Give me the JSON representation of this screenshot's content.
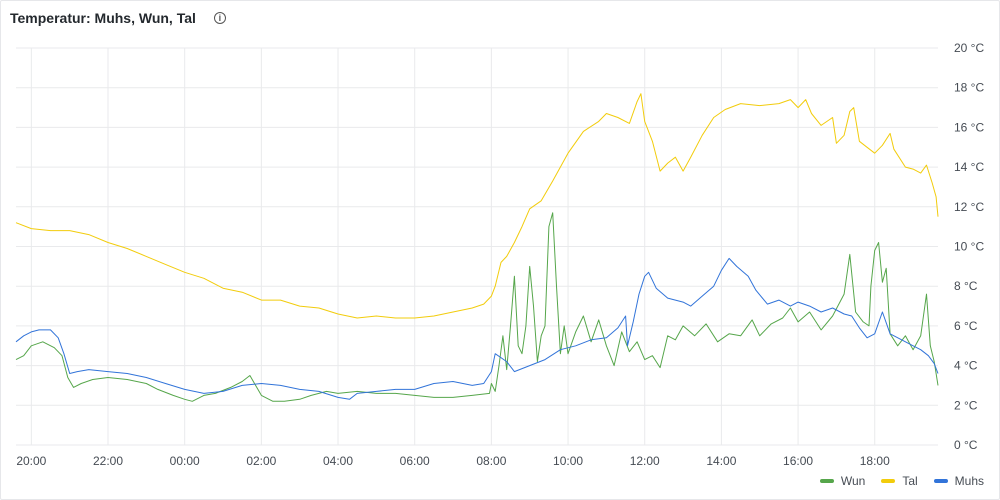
{
  "panel": {
    "title": "Temperatur: Muhs, Wun, Tal",
    "info_icon": "info-circle-icon"
  },
  "chart_data": {
    "type": "line",
    "y_ticks": [
      "0 °C",
      "2 °C",
      "4 °C",
      "6 °C",
      "8 °C",
      "10 °C",
      "12 °C",
      "14 °C",
      "16 °C",
      "18 °C",
      "20 °C"
    ],
    "x_ticks": [
      "20:00",
      "22:00",
      "00:00",
      "02:00",
      "04:00",
      "06:00",
      "08:00",
      "10:00",
      "12:00",
      "14:00",
      "16:00",
      "18:00"
    ],
    "ylim": [
      0,
      20
    ],
    "xlim": [
      19.6,
      43.65
    ],
    "grid": true,
    "legend_position": "bottom-right",
    "series": [
      {
        "name": "Wun",
        "color": "#56a64b",
        "points": [
          [
            19.6,
            4.3
          ],
          [
            19.8,
            4.5
          ],
          [
            20.0,
            5.0
          ],
          [
            20.3,
            5.2
          ],
          [
            20.6,
            4.9
          ],
          [
            20.8,
            4.5
          ],
          [
            20.95,
            3.4
          ],
          [
            21.1,
            2.9
          ],
          [
            21.3,
            3.1
          ],
          [
            21.6,
            3.3
          ],
          [
            22.0,
            3.4
          ],
          [
            22.5,
            3.3
          ],
          [
            23.0,
            3.1
          ],
          [
            23.3,
            2.8
          ],
          [
            23.7,
            2.5
          ],
          [
            24.0,
            2.3
          ],
          [
            24.2,
            2.2
          ],
          [
            24.5,
            2.5
          ],
          [
            24.8,
            2.6
          ],
          [
            25.2,
            2.9
          ],
          [
            25.5,
            3.2
          ],
          [
            25.7,
            3.5
          ],
          [
            25.85,
            3.0
          ],
          [
            26.0,
            2.5
          ],
          [
            26.3,
            2.2
          ],
          [
            26.6,
            2.2
          ],
          [
            27.0,
            2.3
          ],
          [
            27.3,
            2.5
          ],
          [
            27.7,
            2.7
          ],
          [
            28.0,
            2.6
          ],
          [
            28.5,
            2.7
          ],
          [
            29.0,
            2.6
          ],
          [
            29.5,
            2.6
          ],
          [
            30.0,
            2.5
          ],
          [
            30.5,
            2.4
          ],
          [
            31.0,
            2.4
          ],
          [
            31.5,
            2.5
          ],
          [
            31.95,
            2.6
          ],
          [
            32.0,
            3.1
          ],
          [
            32.1,
            2.7
          ],
          [
            32.2,
            4.0
          ],
          [
            32.3,
            5.5
          ],
          [
            32.4,
            3.8
          ],
          [
            32.5,
            6.0
          ],
          [
            32.6,
            8.5
          ],
          [
            32.7,
            5.0
          ],
          [
            32.8,
            4.6
          ],
          [
            32.9,
            6.0
          ],
          [
            33.0,
            9.0
          ],
          [
            33.1,
            7.0
          ],
          [
            33.2,
            4.2
          ],
          [
            33.3,
            5.5
          ],
          [
            33.4,
            6.0
          ],
          [
            33.5,
            11.0
          ],
          [
            33.6,
            11.7
          ],
          [
            33.7,
            8.0
          ],
          [
            33.8,
            4.6
          ],
          [
            33.9,
            6.0
          ],
          [
            34.0,
            4.6
          ],
          [
            34.2,
            5.7
          ],
          [
            34.4,
            6.5
          ],
          [
            34.6,
            5.2
          ],
          [
            34.8,
            6.3
          ],
          [
            35.0,
            5.0
          ],
          [
            35.2,
            4.0
          ],
          [
            35.4,
            5.7
          ],
          [
            35.6,
            4.7
          ],
          [
            35.8,
            5.2
          ],
          [
            36.0,
            4.3
          ],
          [
            36.2,
            4.5
          ],
          [
            36.4,
            3.9
          ],
          [
            36.6,
            5.5
          ],
          [
            36.8,
            5.3
          ],
          [
            37.0,
            6.0
          ],
          [
            37.3,
            5.5
          ],
          [
            37.6,
            6.1
          ],
          [
            37.9,
            5.2
          ],
          [
            38.2,
            5.6
          ],
          [
            38.5,
            5.5
          ],
          [
            38.8,
            6.3
          ],
          [
            39.0,
            5.5
          ],
          [
            39.3,
            6.1
          ],
          [
            39.6,
            6.4
          ],
          [
            39.8,
            6.9
          ],
          [
            40.0,
            6.2
          ],
          [
            40.3,
            6.7
          ],
          [
            40.6,
            5.8
          ],
          [
            40.9,
            6.5
          ],
          [
            41.2,
            7.6
          ],
          [
            41.35,
            9.6
          ],
          [
            41.5,
            6.7
          ],
          [
            41.7,
            6.2
          ],
          [
            41.85,
            6.0
          ],
          [
            41.9,
            8.0
          ],
          [
            42.0,
            9.8
          ],
          [
            42.1,
            10.2
          ],
          [
            42.2,
            8.2
          ],
          [
            42.3,
            8.9
          ],
          [
            42.4,
            5.6
          ],
          [
            42.6,
            5.0
          ],
          [
            42.8,
            5.5
          ],
          [
            43.0,
            4.8
          ],
          [
            43.2,
            5.5
          ],
          [
            43.35,
            7.6
          ],
          [
            43.45,
            5.0
          ],
          [
            43.55,
            4.2
          ],
          [
            43.65,
            3.0
          ]
        ]
      },
      {
        "name": "Tal",
        "color": "#f2cc0c",
        "points": [
          [
            19.6,
            11.2
          ],
          [
            20.0,
            10.9
          ],
          [
            20.5,
            10.8
          ],
          [
            21.0,
            10.8
          ],
          [
            21.5,
            10.6
          ],
          [
            22.0,
            10.2
          ],
          [
            22.5,
            9.9
          ],
          [
            23.0,
            9.5
          ],
          [
            23.5,
            9.1
          ],
          [
            24.0,
            8.7
          ],
          [
            24.5,
            8.4
          ],
          [
            25.0,
            7.9
          ],
          [
            25.5,
            7.7
          ],
          [
            26.0,
            7.3
          ],
          [
            26.5,
            7.3
          ],
          [
            27.0,
            7.0
          ],
          [
            27.5,
            6.9
          ],
          [
            28.0,
            6.6
          ],
          [
            28.5,
            6.4
          ],
          [
            29.0,
            6.5
          ],
          [
            29.5,
            6.4
          ],
          [
            30.0,
            6.4
          ],
          [
            30.5,
            6.5
          ],
          [
            31.0,
            6.7
          ],
          [
            31.5,
            6.9
          ],
          [
            31.8,
            7.1
          ],
          [
            32.0,
            7.5
          ],
          [
            32.1,
            8.0
          ],
          [
            32.25,
            9.2
          ],
          [
            32.4,
            9.5
          ],
          [
            32.6,
            10.2
          ],
          [
            32.8,
            11.0
          ],
          [
            33.0,
            11.9
          ],
          [
            33.3,
            12.3
          ],
          [
            33.6,
            13.3
          ],
          [
            34.0,
            14.7
          ],
          [
            34.4,
            15.8
          ],
          [
            34.8,
            16.3
          ],
          [
            35.0,
            16.7
          ],
          [
            35.3,
            16.5
          ],
          [
            35.6,
            16.2
          ],
          [
            35.8,
            17.3
          ],
          [
            35.9,
            17.7
          ],
          [
            36.0,
            16.3
          ],
          [
            36.2,
            15.3
          ],
          [
            36.4,
            13.8
          ],
          [
            36.6,
            14.2
          ],
          [
            36.8,
            14.5
          ],
          [
            37.0,
            13.8
          ],
          [
            37.2,
            14.5
          ],
          [
            37.5,
            15.6
          ],
          [
            37.8,
            16.5
          ],
          [
            38.1,
            16.9
          ],
          [
            38.5,
            17.2
          ],
          [
            39.0,
            17.1
          ],
          [
            39.5,
            17.2
          ],
          [
            39.8,
            17.4
          ],
          [
            40.0,
            17.0
          ],
          [
            40.2,
            17.4
          ],
          [
            40.35,
            16.7
          ],
          [
            40.6,
            16.1
          ],
          [
            40.9,
            16.5
          ],
          [
            41.0,
            15.2
          ],
          [
            41.2,
            15.6
          ],
          [
            41.35,
            16.8
          ],
          [
            41.45,
            17.0
          ],
          [
            41.6,
            15.3
          ],
          [
            41.8,
            15.0
          ],
          [
            42.0,
            14.7
          ],
          [
            42.2,
            15.1
          ],
          [
            42.4,
            15.7
          ],
          [
            42.5,
            14.9
          ],
          [
            42.8,
            14.0
          ],
          [
            43.0,
            13.9
          ],
          [
            43.2,
            13.7
          ],
          [
            43.35,
            14.1
          ],
          [
            43.5,
            13.2
          ],
          [
            43.6,
            12.5
          ],
          [
            43.65,
            11.5
          ]
        ]
      },
      {
        "name": "Muhs",
        "color": "#3274d9",
        "points": [
          [
            19.6,
            5.2
          ],
          [
            19.8,
            5.5
          ],
          [
            20.0,
            5.7
          ],
          [
            20.2,
            5.8
          ],
          [
            20.5,
            5.8
          ],
          [
            20.7,
            5.4
          ],
          [
            20.85,
            4.6
          ],
          [
            21.0,
            3.6
          ],
          [
            21.2,
            3.7
          ],
          [
            21.5,
            3.8
          ],
          [
            22.0,
            3.7
          ],
          [
            22.5,
            3.6
          ],
          [
            23.0,
            3.4
          ],
          [
            23.5,
            3.1
          ],
          [
            24.0,
            2.8
          ],
          [
            24.5,
            2.6
          ],
          [
            25.0,
            2.7
          ],
          [
            25.5,
            3.0
          ],
          [
            26.0,
            3.1
          ],
          [
            26.5,
            3.0
          ],
          [
            27.0,
            2.8
          ],
          [
            27.5,
            2.7
          ],
          [
            28.0,
            2.4
          ],
          [
            28.3,
            2.3
          ],
          [
            28.5,
            2.6
          ],
          [
            29.0,
            2.7
          ],
          [
            29.5,
            2.8
          ],
          [
            30.0,
            2.8
          ],
          [
            30.5,
            3.1
          ],
          [
            31.0,
            3.2
          ],
          [
            31.5,
            3.0
          ],
          [
            31.8,
            3.1
          ],
          [
            32.0,
            3.7
          ],
          [
            32.1,
            4.6
          ],
          [
            32.4,
            4.2
          ],
          [
            32.6,
            3.7
          ],
          [
            33.0,
            4.0
          ],
          [
            33.4,
            4.3
          ],
          [
            33.8,
            4.8
          ],
          [
            34.2,
            5.0
          ],
          [
            34.6,
            5.3
          ],
          [
            35.0,
            5.4
          ],
          [
            35.3,
            5.9
          ],
          [
            35.5,
            6.5
          ],
          [
            35.55,
            5.0
          ],
          [
            35.7,
            6.2
          ],
          [
            35.85,
            7.6
          ],
          [
            36.0,
            8.5
          ],
          [
            36.1,
            8.7
          ],
          [
            36.3,
            7.9
          ],
          [
            36.6,
            7.4
          ],
          [
            37.0,
            7.2
          ],
          [
            37.2,
            7.0
          ],
          [
            37.5,
            7.5
          ],
          [
            37.8,
            8.0
          ],
          [
            38.0,
            8.8
          ],
          [
            38.2,
            9.4
          ],
          [
            38.4,
            9.0
          ],
          [
            38.7,
            8.5
          ],
          [
            38.9,
            7.8
          ],
          [
            39.2,
            7.1
          ],
          [
            39.5,
            7.3
          ],
          [
            39.8,
            7.0
          ],
          [
            40.0,
            7.2
          ],
          [
            40.3,
            7.0
          ],
          [
            40.6,
            6.7
          ],
          [
            40.9,
            6.9
          ],
          [
            41.2,
            6.6
          ],
          [
            41.4,
            6.5
          ],
          [
            41.6,
            5.9
          ],
          [
            41.8,
            5.4
          ],
          [
            42.0,
            5.6
          ],
          [
            42.2,
            6.7
          ],
          [
            42.4,
            5.6
          ],
          [
            42.7,
            5.3
          ],
          [
            43.0,
            5.0
          ],
          [
            43.2,
            4.8
          ],
          [
            43.4,
            4.5
          ],
          [
            43.55,
            4.1
          ],
          [
            43.65,
            3.6
          ]
        ]
      }
    ]
  }
}
